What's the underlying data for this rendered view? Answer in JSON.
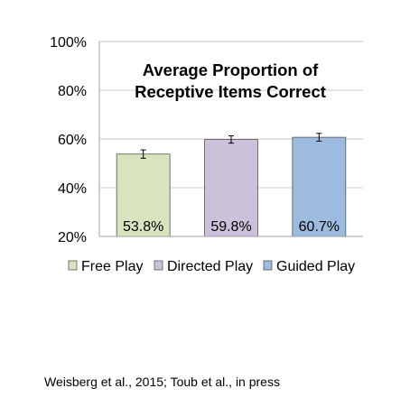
{
  "chart_data": {
    "type": "bar",
    "title_lines": [
      "Average Proportion of",
      "Receptive Items Correct"
    ],
    "categories": [
      "Free Play",
      "Directed Play",
      "Guided Play"
    ],
    "values": [
      53.8,
      59.8,
      60.7
    ],
    "data_labels": [
      "53.8%",
      "59.8%",
      "60.7%"
    ],
    "error_bars": [
      1.7,
      1.5,
      1.6
    ],
    "colors": [
      "#d7e4bd",
      "#ccc1da",
      "#9dbbdf"
    ],
    "ylim": [
      20,
      100
    ],
    "yticks": [
      20,
      40,
      60,
      80,
      100
    ],
    "ytick_labels": [
      "20%",
      "40%",
      "60%",
      "80%",
      "100%"
    ],
    "grid": true,
    "legend_position": "bottom"
  },
  "source_note": "Weisberg et al., 2015; Toub et al., in press"
}
